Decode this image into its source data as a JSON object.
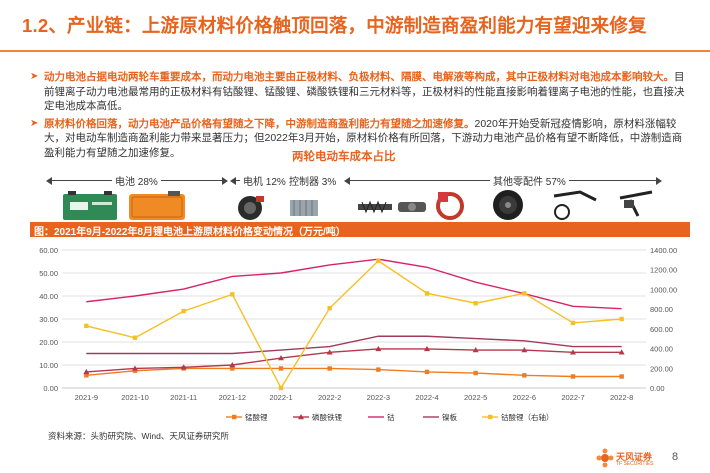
{
  "title": "1.2、产业链：上游原材料价格触顶回落，中游制造商盈利能力有望迎来修复",
  "bullets": [
    {
      "highlight": "动力电池占据电动两轮车重要成本，而动力电池主要由正极材料、负极材料、隔膜、电解液等构成，其中正极材料对电池成本影响较大。",
      "text": "目前锂离子动力电池最常用的正极材料有钴酸锂、锰酸锂、磷酸铁锂和三元材料等，正极材料的性能直接影响着锂离子电池的性能，也直接决定电池成本高低。"
    },
    {
      "highlight": "原材料价格回落，动力电池产品价格有望随之下降，中游制造商盈利能力有望随之加速修复。",
      "text": "2020年开始受新冠疫情影响，原材料涨幅较大，对电动车制造商盈利能力带来显著压力；但2022年3月开始，原材料价格有所回落，下游动力电池产品价格有望不断降低，中游制造商盈利能力有望随之加速修复。"
    }
  ],
  "cost_breakdown": {
    "title": "两轮电动车成本占比",
    "items": [
      {
        "label": "电池 28%",
        "icon": "battery-pack-icon"
      },
      {
        "label": "电机 12%",
        "icon": "motor-icon"
      },
      {
        "label": "控制器 3%",
        "icon": "controller-icon"
      },
      {
        "label": "其他零配件 57%",
        "icon": "parts-icon"
      }
    ]
  },
  "chart_header": "图：2021年9月-2022年8月锂电池上游原材料价格变动情况（万元/吨）",
  "chart_data": {
    "type": "line",
    "categories": [
      "2021-9",
      "2021-10",
      "2021-11",
      "2021-12",
      "2022-1",
      "2022-2",
      "2022-3",
      "2022-4",
      "2022-5",
      "2022-6",
      "2022-7",
      "2022-8"
    ],
    "y_left": {
      "min": 0,
      "max": 60,
      "ticks": [
        "0.00",
        "10.00",
        "20.00",
        "30.00",
        "40.00",
        "50.00",
        "60.00"
      ]
    },
    "y_right": {
      "min": 0,
      "max": 1400,
      "ticks": [
        "0.00",
        "200.00",
        "400.00",
        "600.00",
        "800.00",
        "1000.00",
        "1200.00",
        "1400.00"
      ]
    },
    "series": [
      {
        "name": "锰酸锂",
        "color": "#ee7d22",
        "marker": "square",
        "axis": "left",
        "values": [
          5.5,
          7.5,
          8.5,
          8.5,
          8.5,
          8.5,
          8.0,
          7.0,
          6.5,
          5.5,
          5.0,
          5.0
        ]
      },
      {
        "name": "磷酸铁锂",
        "color": "#b5384a",
        "marker": "triangle",
        "axis": "left",
        "values": [
          7.0,
          8.5,
          9.0,
          10.0,
          13.0,
          15.5,
          17.0,
          17.0,
          16.5,
          16.5,
          15.5,
          15.5
        ]
      },
      {
        "name": "钴",
        "color": "#d6236a",
        "marker": "none",
        "axis": "left",
        "values": [
          37.5,
          40.0,
          43.0,
          48.5,
          50.0,
          53.5,
          56.0,
          52.5,
          46.0,
          41.0,
          35.5,
          34.5
        ]
      },
      {
        "name": "镍板",
        "color": "#a23a5a",
        "marker": "none",
        "axis": "left",
        "values": [
          15.0,
          15.0,
          15.0,
          15.0,
          16.5,
          18.0,
          22.5,
          22.5,
          21.5,
          20.5,
          18.0,
          18.0
        ]
      },
      {
        "name": "钴酸锂（右轴）",
        "color": "#f6bf26",
        "marker": "square",
        "axis": "right",
        "values": [
          630,
          510,
          780,
          950,
          0,
          810,
          1290,
          960,
          860,
          960,
          660,
          700
        ]
      }
    ]
  },
  "source": "资料来源：头豹研究院、Wind、天风证券研究所",
  "logo_text": "天风证券",
  "logo_sub": "TF SECURITIES",
  "page_number": "8",
  "colors": {
    "accent": "#e8641e"
  }
}
